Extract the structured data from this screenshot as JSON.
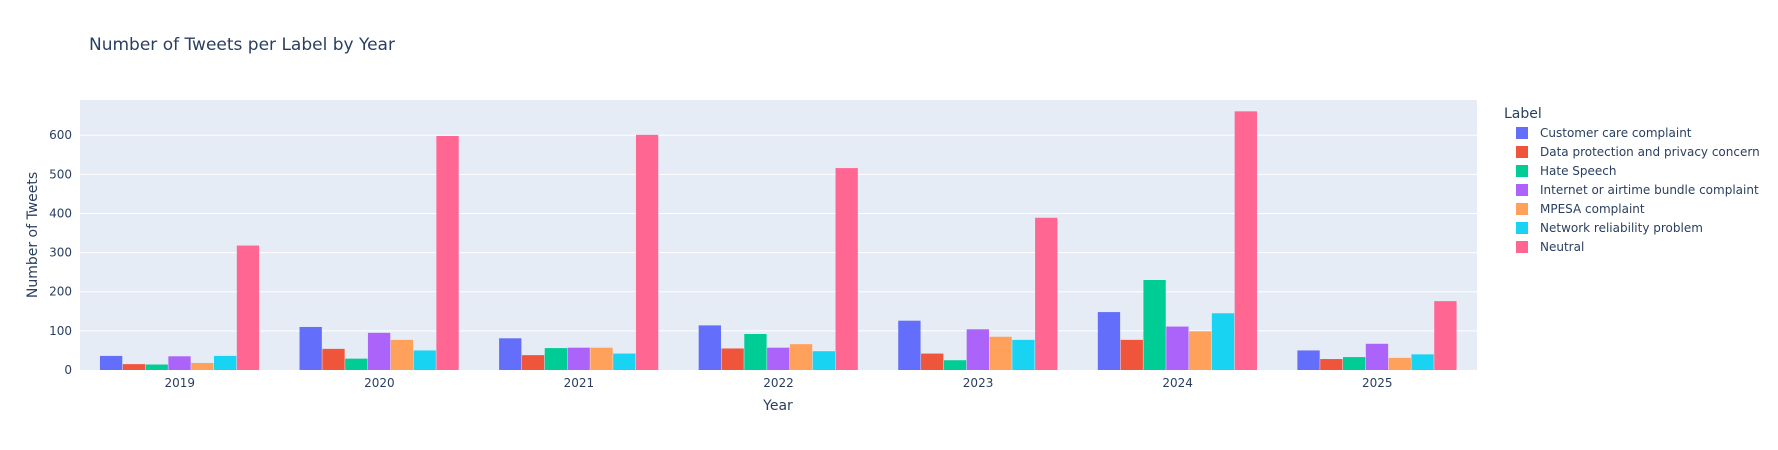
{
  "chart_data": {
    "type": "bar",
    "title": "Number of Tweets per Label by Year",
    "xlabel": "Year",
    "ylabel": "Number of Tweets",
    "ylim": [
      0,
      690
    ],
    "yticks": [
      0,
      100,
      200,
      300,
      400,
      500,
      600
    ],
    "grid": true,
    "legend_title": "Label",
    "legend_position": "right",
    "categories": [
      "2019",
      "2020",
      "2021",
      "2022",
      "2023",
      "2024",
      "2025"
    ],
    "series": [
      {
        "name": "Customer care complaint",
        "color": "#636efa",
        "values": [
          36,
          110,
          81,
          114,
          126,
          148,
          50
        ]
      },
      {
        "name": "Data protection and privacy concern",
        "color": "#ef553b",
        "values": [
          15,
          54,
          38,
          55,
          42,
          77,
          28
        ]
      },
      {
        "name": "Hate Speech",
        "color": "#00cc96",
        "values": [
          14,
          29,
          56,
          92,
          25,
          230,
          33
        ]
      },
      {
        "name": "Internet or airtime bundle complaint",
        "color": "#ab63fa",
        "values": [
          35,
          95,
          57,
          57,
          104,
          111,
          67
        ]
      },
      {
        "name": "MPESA complaint",
        "color": "#ffa15a",
        "values": [
          18,
          77,
          57,
          66,
          85,
          99,
          31
        ]
      },
      {
        "name": "Network reliability problem",
        "color": "#19d3f3",
        "values": [
          36,
          50,
          42,
          48,
          77,
          145,
          40
        ]
      },
      {
        "name": "Neutral",
        "color": "#ff6692",
        "values": [
          318,
          598,
          601,
          516,
          389,
          661,
          176
        ]
      }
    ]
  }
}
